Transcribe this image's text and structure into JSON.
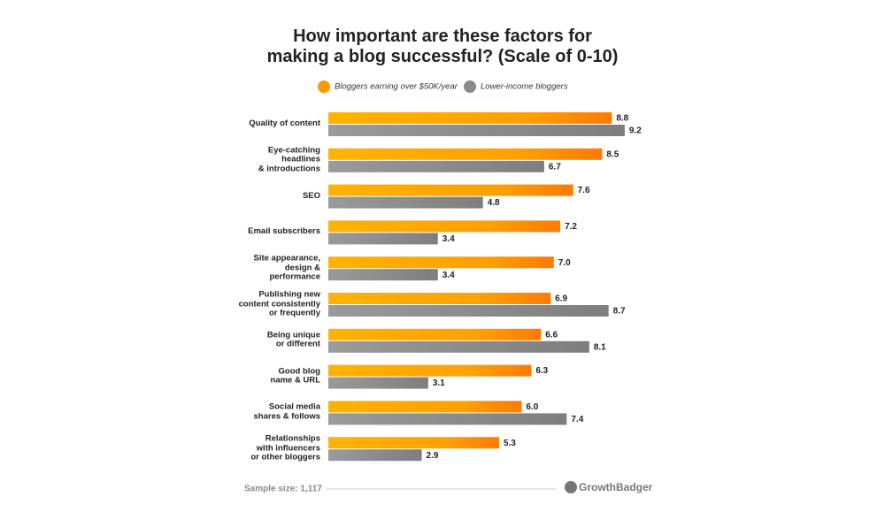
{
  "chart_data": {
    "type": "bar",
    "orientation": "horizontal",
    "title": "How important are these factors for\nmaking a blog successful? (Scale of 0-10)",
    "categories": [
      "Quality of content",
      "Eye-catching\nheadlines\n& introductions",
      "SEO",
      "Email subscribers",
      "Site appearance,\ndesign &\nperformance",
      "Publishing new\ncontent consistently\nor frequently",
      "Being unique\nor different",
      "Good blog\nname & URL",
      "Social media\nshares & follows",
      "Relationships\nwith influencers\nor other bloggers"
    ],
    "series": [
      {
        "name": "Bloggers earning over $50K/year",
        "color": "#ff9800",
        "values": [
          8.8,
          8.5,
          7.6,
          7.2,
          7.0,
          6.9,
          6.6,
          6.3,
          6.0,
          5.3
        ],
        "value_labels": [
          "8.8",
          "8.5",
          "7.6",
          "7.2",
          "7.0",
          "6.9",
          "6.6",
          "6.3",
          "6.0",
          "5.3"
        ]
      },
      {
        "name": "Lower-income bloggers",
        "color": "#8a8a8a",
        "values": [
          9.2,
          6.7,
          4.8,
          3.4,
          3.4,
          8.7,
          8.1,
          3.1,
          7.4,
          2.9
        ],
        "value_labels": [
          "9.2",
          "6.7",
          "4.8",
          "3.4",
          "3.4",
          "8.7",
          "8.1",
          "3.1",
          "7.4",
          "2.9"
        ]
      }
    ],
    "note": "Sample size: 1,117",
    "brand": "GrowthBadger"
  }
}
